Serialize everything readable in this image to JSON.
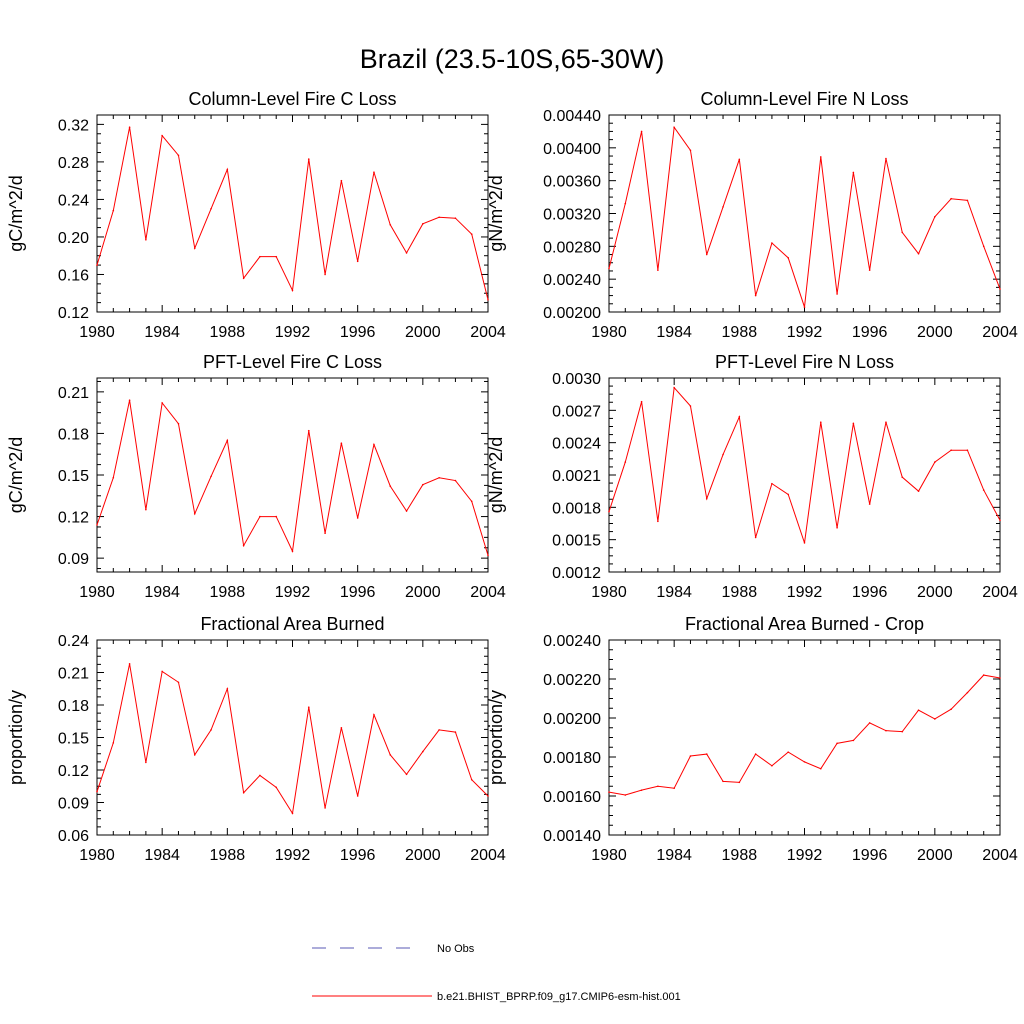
{
  "figure_title": "Brazil (23.5-10S,65-30W)",
  "colors": {
    "model": "#ff0000",
    "obs": "#5a5ab4",
    "axis": "#000000"
  },
  "legend": {
    "entries": [
      {
        "label": "No Obs",
        "style": "dashed",
        "color": "#5a5ab4"
      },
      {
        "label": "b.e21.BHIST_BPRP.f09_g17.CMIP6-esm-hist.001",
        "style": "solid",
        "color": "#ff0000"
      }
    ]
  },
  "chart_data": [
    {
      "type": "line",
      "title": "Column-Level Fire C Loss",
      "ylabel": "gC/m^2/d",
      "xlim": [
        1980,
        2004
      ],
      "ylim": [
        0.12,
        0.33
      ],
      "xticks": [
        "1980",
        "1984",
        "1988",
        "1992",
        "1996",
        "2000",
        "2004"
      ],
      "yticks": [
        "0.12",
        "0.16",
        "0.20",
        "0.24",
        "0.28",
        "0.32"
      ],
      "x": [
        1980,
        1981,
        1982,
        1983,
        1984,
        1985,
        1986,
        1987,
        1988,
        1989,
        1990,
        1991,
        1992,
        1993,
        1994,
        1995,
        1996,
        1997,
        1998,
        1999,
        2000,
        2001,
        2002,
        2003,
        2004
      ],
      "series": [
        {
          "name": "b.e21.BHIST_BPRP.f09_g17.CMIP6-esm-hist.001",
          "values": [
            0.17,
            0.228,
            0.317,
            0.197,
            0.308,
            0.287,
            0.188,
            0.23,
            0.272,
            0.156,
            0.179,
            0.179,
            0.143,
            0.283,
            0.16,
            0.26,
            0.174,
            0.269,
            0.213,
            0.183,
            0.214,
            0.221,
            0.22,
            0.203,
            0.133
          ]
        }
      ]
    },
    {
      "type": "line",
      "title": "Column-Level Fire N Loss",
      "ylabel": "gN/m^2/d",
      "xlim": [
        1980,
        2004
      ],
      "ylim": [
        0.002,
        0.0044
      ],
      "xticks": [
        "1980",
        "1984",
        "1988",
        "1992",
        "1996",
        "2000",
        "2004"
      ],
      "yticks": [
        "0.00200",
        "0.00240",
        "0.00280",
        "0.00320",
        "0.00360",
        "0.00400",
        "0.00440"
      ],
      "x": [
        1980,
        1981,
        1982,
        1983,
        1984,
        1985,
        1986,
        1987,
        1988,
        1989,
        1990,
        1991,
        1992,
        1993,
        1994,
        1995,
        1996,
        1997,
        1998,
        1999,
        2000,
        2001,
        2002,
        2003,
        2004
      ],
      "series": [
        {
          "name": "b.e21.BHIST_BPRP.f09_g17.CMIP6-esm-hist.001",
          "values": [
            0.00253,
            0.00332,
            0.0042,
            0.00251,
            0.00425,
            0.00397,
            0.0027,
            0.00328,
            0.00386,
            0.0022,
            0.00284,
            0.00266,
            0.00206,
            0.00389,
            0.00222,
            0.0037,
            0.00251,
            0.00387,
            0.00297,
            0.00271,
            0.00316,
            0.00338,
            0.00336,
            0.0028,
            0.00228
          ]
        }
      ]
    },
    {
      "type": "line",
      "title": "PFT-Level Fire C Loss",
      "ylabel": "gC/m^2/d",
      "xlim": [
        1980,
        2004
      ],
      "ylim": [
        0.08,
        0.22
      ],
      "xticks": [
        "1980",
        "1984",
        "1988",
        "1992",
        "1996",
        "2000",
        "2004"
      ],
      "yticks": [
        "0.09",
        "0.12",
        "0.15",
        "0.18",
        "0.21"
      ],
      "x": [
        1980,
        1981,
        1982,
        1983,
        1984,
        1985,
        1986,
        1987,
        1988,
        1989,
        1990,
        1991,
        1992,
        1993,
        1994,
        1995,
        1996,
        1997,
        1998,
        1999,
        2000,
        2001,
        2002,
        2003,
        2004
      ],
      "series": [
        {
          "name": "b.e21.BHIST_BPRP.f09_g17.CMIP6-esm-hist.001",
          "values": [
            0.114,
            0.148,
            0.204,
            0.125,
            0.202,
            0.187,
            0.122,
            0.149,
            0.175,
            0.099,
            0.12,
            0.12,
            0.095,
            0.182,
            0.108,
            0.173,
            0.119,
            0.172,
            0.142,
            0.124,
            0.143,
            0.148,
            0.146,
            0.131,
            0.092
          ]
        }
      ]
    },
    {
      "type": "line",
      "title": "PFT-Level Fire N Loss",
      "ylabel": "gN/m^2/d",
      "xlim": [
        1980,
        2004
      ],
      "ylim": [
        0.0012,
        0.003
      ],
      "xticks": [
        "1980",
        "1984",
        "1988",
        "1992",
        "1996",
        "2000",
        "2004"
      ],
      "yticks": [
        "0.0012",
        "0.0015",
        "0.0018",
        "0.0021",
        "0.0024",
        "0.0027",
        "0.0030"
      ],
      "x": [
        1980,
        1981,
        1982,
        1983,
        1984,
        1985,
        1986,
        1987,
        1988,
        1989,
        1990,
        1991,
        1992,
        1993,
        1994,
        1995,
        1996,
        1997,
        1998,
        1999,
        2000,
        2001,
        2002,
        2003,
        2004
      ],
      "series": [
        {
          "name": "b.e21.BHIST_BPRP.f09_g17.CMIP6-esm-hist.001",
          "values": [
            0.00176,
            0.00222,
            0.00278,
            0.00167,
            0.00291,
            0.00274,
            0.00188,
            0.00229,
            0.00264,
            0.00152,
            0.00202,
            0.00192,
            0.00147,
            0.00259,
            0.00161,
            0.00258,
            0.00183,
            0.00259,
            0.00208,
            0.00195,
            0.00222,
            0.00233,
            0.00233,
            0.00196,
            0.00168
          ]
        }
      ]
    },
    {
      "type": "line",
      "title": "Fractional Area Burned",
      "ylabel": "proportion/y",
      "xlim": [
        1980,
        2004
      ],
      "ylim": [
        0.06,
        0.24
      ],
      "xticks": [
        "1980",
        "1984",
        "1988",
        "1992",
        "1996",
        "2000",
        "2004"
      ],
      "yticks": [
        "0.06",
        "0.09",
        "0.12",
        "0.15",
        "0.18",
        "0.21",
        "0.24"
      ],
      "x": [
        1980,
        1981,
        1982,
        1983,
        1984,
        1985,
        1986,
        1987,
        1988,
        1989,
        1990,
        1991,
        1992,
        1993,
        1994,
        1995,
        1996,
        1997,
        1998,
        1999,
        2000,
        2001,
        2002,
        2003,
        2004
      ],
      "series": [
        {
          "name": "b.e21.BHIST_BPRP.f09_g17.CMIP6-esm-hist.001",
          "values": [
            0.1,
            0.145,
            0.218,
            0.127,
            0.211,
            0.201,
            0.134,
            0.157,
            0.195,
            0.099,
            0.115,
            0.104,
            0.08,
            0.178,
            0.085,
            0.159,
            0.096,
            0.171,
            0.134,
            0.116,
            0.137,
            0.157,
            0.155,
            0.111,
            0.096
          ]
        }
      ]
    },
    {
      "type": "line",
      "title": "Fractional Area Burned - Crop",
      "ylabel": "proportion/y",
      "xlim": [
        1980,
        2004
      ],
      "ylim": [
        0.0014,
        0.0024
      ],
      "xticks": [
        "1980",
        "1984",
        "1988",
        "1992",
        "1996",
        "2000",
        "2004"
      ],
      "yticks": [
        "0.00140",
        "0.00160",
        "0.00180",
        "0.00200",
        "0.00220",
        "0.00240"
      ],
      "x": [
        1980,
        1981,
        1982,
        1983,
        1984,
        1985,
        1986,
        1987,
        1988,
        1989,
        1990,
        1991,
        1992,
        1993,
        1994,
        1995,
        1996,
        1997,
        1998,
        1999,
        2000,
        2001,
        2002,
        2003,
        2004
      ],
      "series": [
        {
          "name": "b.e21.BHIST_BPRP.f09_g17.CMIP6-esm-hist.001",
          "values": [
            0.00162,
            0.001605,
            0.00163,
            0.00165,
            0.00164,
            0.001805,
            0.001815,
            0.001675,
            0.00167,
            0.001815,
            0.001755,
            0.001825,
            0.001775,
            0.00174,
            0.00187,
            0.001885,
            0.001975,
            0.001935,
            0.00193,
            0.00204,
            0.001995,
            0.002045,
            0.00213,
            0.00222,
            0.002205
          ]
        }
      ]
    }
  ]
}
